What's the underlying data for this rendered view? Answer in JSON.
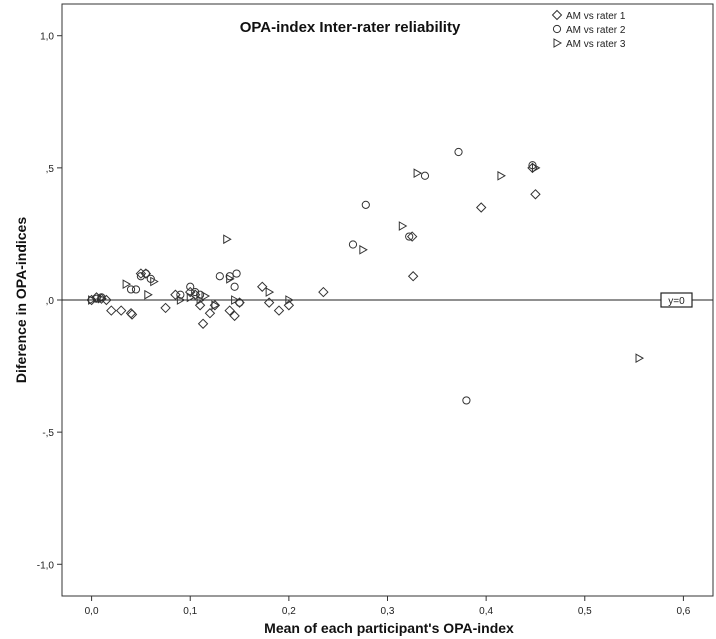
{
  "chart_data": {
    "type": "scatter",
    "title": "OPA-index Inter-rater reliability",
    "xlabel": "Mean of each participant's OPA-index",
    "ylabel": "Diference in OPA-indices",
    "xlim": [
      -0.03,
      0.63
    ],
    "ylim": [
      -1.12,
      1.12
    ],
    "x_ticks": [
      0.0,
      0.1,
      0.2,
      0.3,
      0.4,
      0.5,
      0.6
    ],
    "x_tick_labels": [
      "0,0",
      "0,1",
      "0,2",
      "0,3",
      "0,4",
      "0,5",
      "0,6"
    ],
    "y_ticks": [
      1.0,
      0.5,
      0.0,
      -0.5,
      -1.0
    ],
    "y_tick_labels": [
      "1,0",
      ",5",
      ",0",
      "-,5",
      "-1,0"
    ],
    "grid": false,
    "legend_position": "top-right",
    "reference_line": {
      "y": 0,
      "label": "y=0"
    },
    "series": [
      {
        "name": "AM vs rater 1",
        "marker": "diamond",
        "points": [
          [
            0.0,
            0.0
          ],
          [
            0.005,
            0.01
          ],
          [
            0.01,
            0.005
          ],
          [
            0.015,
            0.0
          ],
          [
            0.02,
            -0.04
          ],
          [
            0.03,
            -0.04
          ],
          [
            0.04,
            -0.05
          ],
          [
            0.041,
            -0.055
          ],
          [
            0.05,
            0.1
          ],
          [
            0.055,
            0.1
          ],
          [
            0.075,
            -0.03
          ],
          [
            0.085,
            0.02
          ],
          [
            0.1,
            0.03
          ],
          [
            0.105,
            0.02
          ],
          [
            0.11,
            -0.02
          ],
          [
            0.113,
            -0.09
          ],
          [
            0.12,
            -0.05
          ],
          [
            0.125,
            -0.02
          ],
          [
            0.14,
            -0.04
          ],
          [
            0.145,
            -0.06
          ],
          [
            0.15,
            -0.01
          ],
          [
            0.173,
            0.05
          ],
          [
            0.18,
            -0.01
          ],
          [
            0.19,
            -0.04
          ],
          [
            0.2,
            -0.02
          ],
          [
            0.235,
            0.03
          ],
          [
            0.325,
            0.24
          ],
          [
            0.326,
            0.09
          ],
          [
            0.395,
            0.35
          ],
          [
            0.447,
            0.5
          ],
          [
            0.45,
            0.4
          ]
        ]
      },
      {
        "name": "AM vs rater 2",
        "marker": "circle",
        "points": [
          [
            0.005,
            0.005
          ],
          [
            0.01,
            0.01
          ],
          [
            0.04,
            0.04
          ],
          [
            0.045,
            0.04
          ],
          [
            0.05,
            0.09
          ],
          [
            0.055,
            0.1
          ],
          [
            0.06,
            0.08
          ],
          [
            0.09,
            0.02
          ],
          [
            0.1,
            0.05
          ],
          [
            0.105,
            0.03
          ],
          [
            0.11,
            0.02
          ],
          [
            0.13,
            0.09
          ],
          [
            0.14,
            0.09
          ],
          [
            0.145,
            0.05
          ],
          [
            0.147,
            0.1
          ],
          [
            0.15,
            -0.01
          ],
          [
            0.265,
            0.21
          ],
          [
            0.278,
            0.36
          ],
          [
            0.322,
            0.24
          ],
          [
            0.338,
            0.47
          ],
          [
            0.372,
            0.56
          ],
          [
            0.38,
            -0.38
          ],
          [
            0.447,
            0.51
          ]
        ]
      },
      {
        "name": "AM vs rater 3",
        "marker": "triangle",
        "points": [
          [
            0.0,
            0.0
          ],
          [
            0.01,
            0.005
          ],
          [
            0.035,
            0.06
          ],
          [
            0.057,
            0.02
          ],
          [
            0.063,
            0.07
          ],
          [
            0.09,
            0.0
          ],
          [
            0.1,
            0.01
          ],
          [
            0.11,
            0.0
          ],
          [
            0.115,
            0.015
          ],
          [
            0.125,
            -0.02
          ],
          [
            0.137,
            0.23
          ],
          [
            0.14,
            0.08
          ],
          [
            0.145,
            0.0
          ],
          [
            0.18,
            0.03
          ],
          [
            0.2,
            0.0
          ],
          [
            0.275,
            0.19
          ],
          [
            0.315,
            0.28
          ],
          [
            0.33,
            0.48
          ],
          [
            0.415,
            0.47
          ],
          [
            0.45,
            0.5
          ],
          [
            0.555,
            -0.22
          ]
        ]
      }
    ]
  }
}
